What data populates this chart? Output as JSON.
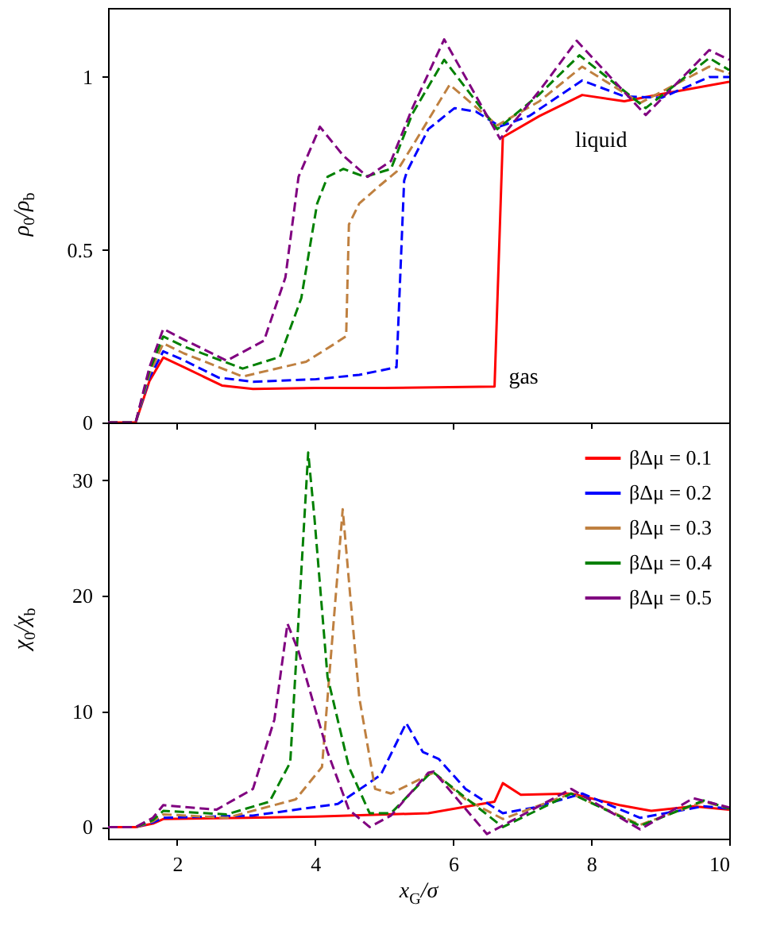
{
  "chart_data": [
    {
      "type": "line",
      "ylabel": "ρ$_{0}$/ρ$_{b}$",
      "xlim": [
        1,
        10
      ],
      "xticks": [
        2,
        4,
        6,
        8,
        10
      ],
      "ylim": [
        0,
        1.2
      ],
      "yticks": [
        0,
        0.5,
        1
      ],
      "tick_labels": "y",
      "legend": false,
      "annotations": [
        "gas",
        "liquid"
      ],
      "series": [
        {
          "color": "#ff0000",
          "line_style": "solid",
          "x": [
            1,
            1.4,
            1.6,
            1.8,
            2.1,
            2.65,
            3.1,
            4,
            5,
            6.6,
            6.72,
            7.25,
            7.87,
            8.48,
            9,
            10
          ],
          "values": [
            0,
            0,
            0.12,
            0.188,
            0.16,
            0.107,
            0.097,
            0.1,
            0.1,
            0.104,
            0.826,
            0.887,
            0.948,
            0.93,
            0.95,
            0.986
          ]
        },
        {
          "color": "#0000ff",
          "line_style": "dashed",
          "x": [
            1,
            1.4,
            1.6,
            1.8,
            2.1,
            2.6,
            3.1,
            4,
            4.64,
            5.18,
            5.29,
            5.33,
            5.64,
            6.02,
            6.33,
            6.68,
            7.1,
            7.87,
            8.48,
            9.02,
            9.71,
            10
          ],
          "values": [
            0,
            0,
            0.13,
            0.206,
            0.18,
            0.13,
            0.118,
            0.125,
            0.138,
            0.16,
            0.7,
            0.726,
            0.849,
            0.91,
            0.9,
            0.857,
            0.887,
            0.99,
            0.944,
            0.94,
            1,
            1
          ]
        },
        {
          "color": "#bf8040",
          "line_style": "dashed",
          "x": [
            1,
            1.4,
            1.6,
            1.8,
            2.1,
            2.95,
            3.87,
            4.3,
            4.45,
            4.49,
            4.64,
            4.95,
            5.18,
            5.41,
            5.95,
            6.64,
            7.25,
            7.87,
            8.71,
            9.71,
            10
          ],
          "values": [
            0,
            0,
            0.14,
            0.229,
            0.2,
            0.133,
            0.176,
            0.23,
            0.25,
            0.573,
            0.634,
            0.688,
            0.726,
            0.8,
            0.978,
            0.86,
            0.93,
            1.03,
            0.925,
            1.03,
            1.01
          ]
        },
        {
          "color": "#008000",
          "line_style": "dashed",
          "x": [
            1,
            1.4,
            1.6,
            1.8,
            2.1,
            2.95,
            3.49,
            3.8,
            4.03,
            4.18,
            4.41,
            4.72,
            5.1,
            5.41,
            5.87,
            6.64,
            7.25,
            7.83,
            8.79,
            9.71,
            10
          ],
          "values": [
            0,
            0,
            0.15,
            0.249,
            0.22,
            0.156,
            0.19,
            0.36,
            0.634,
            0.711,
            0.734,
            0.711,
            0.734,
            0.894,
            1.05,
            0.849,
            0.95,
            1.063,
            0.91,
            1.055,
            1.02
          ]
        },
        {
          "color": "#800080",
          "line_style": "dashed",
          "x": [
            1,
            1.4,
            1.6,
            1.8,
            2.1,
            2.72,
            3.26,
            3.57,
            3.76,
            4.07,
            4.41,
            4.76,
            5.1,
            5.41,
            5.87,
            6.68,
            7.25,
            7.79,
            8.79,
            9.71,
            10
          ],
          "values": [
            0,
            0,
            0.16,
            0.271,
            0.24,
            0.179,
            0.237,
            0.42,
            0.711,
            0.856,
            0.772,
            0.711,
            0.757,
            0.91,
            1.109,
            0.821,
            0.96,
            1.105,
            0.89,
            1.078,
            1.05
          ]
        }
      ]
    },
    {
      "type": "line",
      "ylabel": "χ$_{0}$/χ$_{b}$",
      "xlabel": "x$_{G}$/σ",
      "xlim": [
        1,
        10
      ],
      "xticks": [
        2,
        4,
        6,
        8,
        10
      ],
      "ylim": [
        -1,
        35
      ],
      "yticks": [
        0,
        10,
        20,
        30
      ],
      "legend": "top right",
      "series": [
        {
          "name": "βΔμ = 0.1",
          "color": "#ff0000",
          "line_style": "solid",
          "x": [
            1,
            1.4,
            1.65,
            1.8,
            3,
            4,
            5.64,
            6.6,
            6.72,
            6.98,
            7.71,
            8.41,
            8.87,
            9.48,
            10
          ],
          "values": [
            0,
            0,
            0.3,
            0.7,
            0.8,
            0.9,
            1.2,
            2.2,
            3.8,
            2.8,
            2.9,
            1.9,
            1.4,
            1.8,
            1.5
          ]
        },
        {
          "name": "βΔμ = 0.2",
          "color": "#0000ff",
          "line_style": "dashed",
          "x": [
            1,
            1.4,
            1.65,
            1.8,
            3.1,
            4.33,
            4.95,
            5.32,
            5.56,
            5.79,
            6.18,
            6.72,
            7.18,
            7.87,
            8.71,
            9.63,
            10
          ],
          "values": [
            0,
            0,
            0.4,
            0.8,
            1,
            2,
            4.5,
            9,
            6.5,
            5.9,
            3.3,
            1.2,
            1.7,
            2.9,
            0.8,
            1.8,
            1.6
          ]
        },
        {
          "name": "βΔμ = 0.3",
          "color": "#bf8040",
          "line_style": "dashed",
          "x": [
            1,
            1.4,
            1.65,
            1.8,
            2.72,
            3.72,
            4.1,
            4.4,
            4.49,
            4.64,
            4.87,
            5.1,
            5.64,
            5.72,
            6.18,
            6.72,
            7.71,
            8.71,
            9.63,
            10
          ],
          "values": [
            0,
            0,
            0.5,
            1.1,
            0.8,
            2.4,
            5.2,
            27.5,
            21.3,
            11.2,
            3.3,
            2.9,
            4.5,
            4.7,
            2.4,
            0.7,
            2.9,
            0.2,
            2.2,
            1.6
          ]
        },
        {
          "name": "βΔμ = 0.4",
          "color": "#008000",
          "line_style": "dashed",
          "x": [
            1,
            1.4,
            1.65,
            1.8,
            2.72,
            3.34,
            3.64,
            3.9,
            3.99,
            4.18,
            4.49,
            4.79,
            5.1,
            5.64,
            5.72,
            6.72,
            7.71,
            8.71,
            9.63,
            10
          ],
          "values": [
            0,
            0,
            0.6,
            1.4,
            1.1,
            2.2,
            5.6,
            32.4,
            26.8,
            13,
            5.2,
            1.2,
            1.2,
            4.5,
            4.7,
            0,
            2.9,
            0.1,
            2.3,
            1.6
          ]
        },
        {
          "name": "βΔμ = 0.5",
          "color": "#800080",
          "line_style": "dashed",
          "x": [
            1,
            1.4,
            1.65,
            1.8,
            2.57,
            3.1,
            3.41,
            3.6,
            3.76,
            4.18,
            4.49,
            4.79,
            5.1,
            5.64,
            5.72,
            6.49,
            7.71,
            8.71,
            9.48,
            10
          ],
          "values": [
            0,
            0,
            0.8,
            1.9,
            1.5,
            3.3,
            9.3,
            17.6,
            15.2,
            6.5,
            1.5,
            0,
            1,
            4.7,
            4.8,
            -0.6,
            3.3,
            -0.2,
            2.5,
            1.7
          ]
        }
      ]
    }
  ]
}
